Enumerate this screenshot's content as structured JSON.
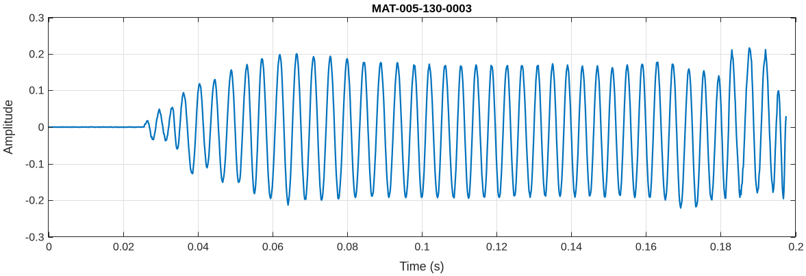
{
  "chart_data": {
    "type": "line",
    "title": "MAT-005-130-0003",
    "xlabel": "Time (s)",
    "ylabel": "Amplitude",
    "xlim": [
      0,
      0.2
    ],
    "ylim": [
      -0.3,
      0.3
    ],
    "grid": true,
    "x_ticks": [
      0,
      0.02,
      0.04,
      0.06,
      0.08,
      0.1,
      0.12,
      0.14,
      0.16,
      0.18,
      0.2
    ],
    "x_tick_labels": [
      "0",
      "0.02",
      "0.04",
      "0.06",
      "0.08",
      "0.1",
      "0.12",
      "0.14",
      "0.16",
      "0.18",
      "0.2"
    ],
    "y_ticks": [
      -0.3,
      -0.2,
      -0.1,
      0,
      0.1,
      0.2,
      0.3
    ],
    "y_tick_labels": [
      "-0.3",
      "-0.2",
      "-0.1",
      "0",
      "0.1",
      "0.2",
      "0.3"
    ],
    "series": [
      {
        "color": "#0072bd",
        "signal_start": 0.0255,
        "signal_end": 0.1975,
        "peaks": [
          [
            0.0265,
            0.015
          ],
          [
            0.0297,
            0.045
          ],
          [
            0.0332,
            0.055
          ],
          [
            0.0362,
            0.095
          ],
          [
            0.0405,
            0.12
          ],
          [
            0.0445,
            0.13
          ],
          [
            0.049,
            0.155
          ],
          [
            0.0532,
            0.17
          ],
          [
            0.0572,
            0.19
          ],
          [
            0.062,
            0.2
          ],
          [
            0.0665,
            0.2
          ],
          [
            0.071,
            0.195
          ],
          [
            0.0755,
            0.19
          ],
          [
            0.08,
            0.185
          ],
          [
            0.0845,
            0.18
          ],
          [
            0.089,
            0.175
          ],
          [
            0.0935,
            0.175
          ],
          [
            0.098,
            0.17
          ],
          [
            0.102,
            0.17
          ],
          [
            0.1062,
            0.17
          ],
          [
            0.1105,
            0.17
          ],
          [
            0.1145,
            0.17
          ],
          [
            0.1187,
            0.17
          ],
          [
            0.1228,
            0.17
          ],
          [
            0.1268,
            0.17
          ],
          [
            0.131,
            0.17
          ],
          [
            0.135,
            0.17
          ],
          [
            0.139,
            0.17
          ],
          [
            0.143,
            0.165
          ],
          [
            0.147,
            0.165
          ],
          [
            0.151,
            0.165
          ],
          [
            0.155,
            0.17
          ],
          [
            0.159,
            0.175
          ],
          [
            0.163,
            0.18
          ],
          [
            0.1672,
            0.175
          ],
          [
            0.1715,
            0.16
          ],
          [
            0.1755,
            0.15
          ],
          [
            0.1795,
            0.14
          ],
          [
            0.183,
            0.2
          ],
          [
            0.1878,
            0.22
          ],
          [
            0.192,
            0.2
          ],
          [
            0.1955,
            0.1
          ]
        ],
        "troughs": [
          [
            0.028,
            -0.035
          ],
          [
            0.0315,
            -0.035
          ],
          [
            0.0345,
            -0.06
          ],
          [
            0.0385,
            -0.13
          ],
          [
            0.0425,
            -0.11
          ],
          [
            0.0467,
            -0.15
          ],
          [
            0.051,
            -0.155
          ],
          [
            0.0552,
            -0.18
          ],
          [
            0.0595,
            -0.195
          ],
          [
            0.0642,
            -0.21
          ],
          [
            0.0688,
            -0.2
          ],
          [
            0.0732,
            -0.2
          ],
          [
            0.0777,
            -0.195
          ],
          [
            0.0822,
            -0.19
          ],
          [
            0.0867,
            -0.19
          ],
          [
            0.0912,
            -0.19
          ],
          [
            0.0957,
            -0.19
          ],
          [
            0.1,
            -0.195
          ],
          [
            0.1042,
            -0.195
          ],
          [
            0.1085,
            -0.195
          ],
          [
            0.1125,
            -0.195
          ],
          [
            0.1167,
            -0.195
          ],
          [
            0.1207,
            -0.195
          ],
          [
            0.1248,
            -0.19
          ],
          [
            0.129,
            -0.19
          ],
          [
            0.133,
            -0.19
          ],
          [
            0.137,
            -0.19
          ],
          [
            0.141,
            -0.19
          ],
          [
            0.145,
            -0.19
          ],
          [
            0.149,
            -0.19
          ],
          [
            0.153,
            -0.19
          ],
          [
            0.157,
            -0.19
          ],
          [
            0.161,
            -0.195
          ],
          [
            0.1652,
            -0.2
          ],
          [
            0.1693,
            -0.22
          ],
          [
            0.1735,
            -0.22
          ],
          [
            0.1775,
            -0.2
          ],
          [
            0.1812,
            -0.19
          ],
          [
            0.1853,
            -0.185
          ],
          [
            0.1898,
            -0.18
          ],
          [
            0.194,
            -0.17
          ],
          [
            0.1968,
            -0.19
          ]
        ],
        "end_value": 0.03
      }
    ]
  }
}
